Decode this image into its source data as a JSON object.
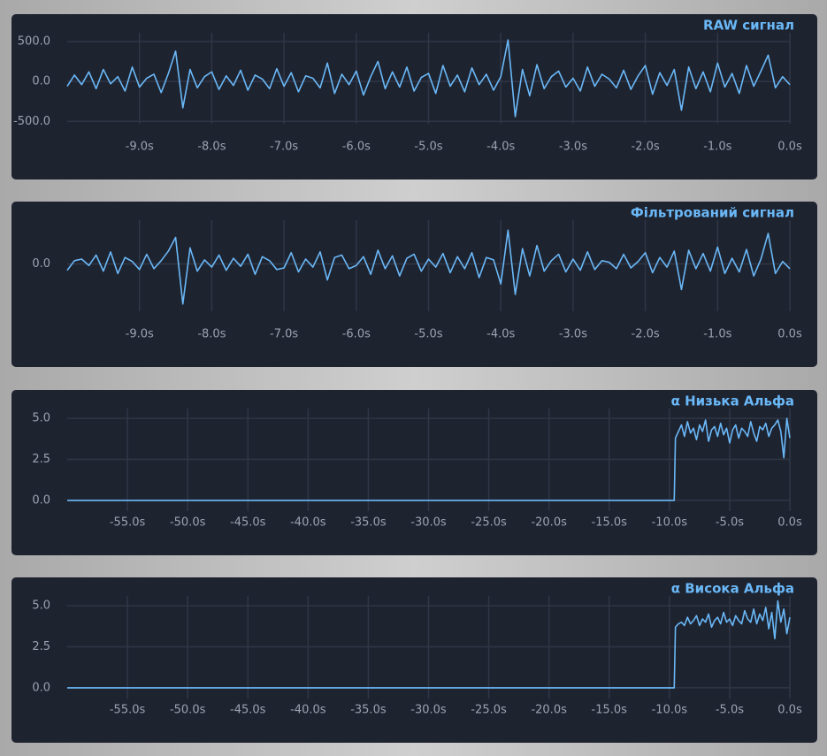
{
  "chart_data": [
    {
      "type": "line",
      "title": "RAW сигнал",
      "color": "#6ab8f7",
      "grid": true,
      "x": [
        -10,
        -9.9,
        -9.8,
        -9.7,
        -9.6,
        -9.5,
        -9.4,
        -9.3,
        -9.2,
        -9.1,
        -9,
        -8.9,
        -8.8,
        -8.7,
        -8.6,
        -8.5,
        -8.4,
        -8.3,
        -8.2,
        -8.1,
        -8,
        -7.9,
        -7.8,
        -7.7,
        -7.6,
        -7.5,
        -7.4,
        -7.3,
        -7.2,
        -7.1,
        -7,
        -6.9,
        -6.8,
        -6.7,
        -6.6,
        -6.5,
        -6.4,
        -6.3,
        -6.2,
        -6.1,
        -6,
        -5.9,
        -5.8,
        -5.7,
        -5.6,
        -5.5,
        -5.4,
        -5.3,
        -5.2,
        -5.1,
        -5,
        -4.9,
        -4.8,
        -4.7,
        -4.6,
        -4.5,
        -4.4,
        -4.3,
        -4.2,
        -4.1,
        -4,
        -3.9,
        -3.8,
        -3.7,
        -3.6,
        -3.5,
        -3.4,
        -3.3,
        -3.2,
        -3.1,
        -3,
        -2.9,
        -2.8,
        -2.7,
        -2.6,
        -2.5,
        -2.4,
        -2.3,
        -2.2,
        -2.1,
        -2,
        -1.9,
        -1.8,
        -1.7,
        -1.6,
        -1.5,
        -1.4,
        -1.3,
        -1.2,
        -1.1,
        -1,
        -0.9,
        -0.8,
        -0.7,
        -0.6,
        -0.5,
        -0.4,
        -0.3,
        -0.2,
        -0.1,
        0
      ],
      "values": [
        -60,
        80,
        -40,
        120,
        -90,
        150,
        -30,
        60,
        -120,
        180,
        -70,
        40,
        90,
        -140,
        100,
        380,
        -330,
        150,
        -80,
        60,
        120,
        -100,
        70,
        -50,
        140,
        -110,
        80,
        30,
        -90,
        160,
        -60,
        110,
        -130,
        70,
        40,
        -80,
        230,
        -150,
        90,
        -40,
        130,
        -170,
        60,
        250,
        -90,
        120,
        -70,
        180,
        -120,
        50,
        100,
        -150,
        200,
        -60,
        80,
        -130,
        170,
        -40,
        90,
        -110,
        60,
        520,
        -440,
        150,
        -180,
        210,
        -90,
        60,
        130,
        -70,
        40,
        -120,
        180,
        -60,
        90,
        30,
        -80,
        140,
        -100,
        70,
        200,
        -160,
        110,
        -50,
        150,
        -360,
        180,
        -90,
        120,
        -130,
        230,
        -70,
        100,
        -150,
        200,
        -60,
        130,
        330,
        -80,
        60,
        -40
      ],
      "xlim": [
        -10,
        0
      ],
      "ylim": [
        -530,
        610
      ],
      "xticks": [
        {
          "value": -9,
          "label": "-9.0s"
        },
        {
          "value": -8,
          "label": "-8.0s"
        },
        {
          "value": -7,
          "label": "-7.0s"
        },
        {
          "value": -6,
          "label": "-6.0s"
        },
        {
          "value": -5,
          "label": "-5.0s"
        },
        {
          "value": -4,
          "label": "-4.0s"
        },
        {
          "value": -3,
          "label": "-3.0s"
        },
        {
          "value": -2,
          "label": "-2.0s"
        },
        {
          "value": -1,
          "label": "-1.0s"
        },
        {
          "value": 0,
          "label": "0.0s"
        }
      ],
      "yticks": [
        {
          "value": -500,
          "label": "-500.0"
        },
        {
          "value": 0,
          "label": "0.0"
        },
        {
          "value": 500,
          "label": "500.0"
        }
      ]
    },
    {
      "type": "line",
      "title": "Фільтрований сигнал",
      "color": "#6ab8f7",
      "grid": true,
      "x": [
        -10,
        -9.9,
        -9.8,
        -9.7,
        -9.6,
        -9.5,
        -9.4,
        -9.3,
        -9.2,
        -9.1,
        -9,
        -8.9,
        -8.8,
        -8.7,
        -8.6,
        -8.5,
        -8.4,
        -8.3,
        -8.2,
        -8.1,
        -8,
        -7.9,
        -7.8,
        -7.7,
        -7.6,
        -7.5,
        -7.4,
        -7.3,
        -7.2,
        -7.1,
        -7,
        -6.9,
        -6.8,
        -6.7,
        -6.6,
        -6.5,
        -6.4,
        -6.3,
        -6.2,
        -6.1,
        -6,
        -5.9,
        -5.8,
        -5.7,
        -5.6,
        -5.5,
        -5.4,
        -5.3,
        -5.2,
        -5.1,
        -5,
        -4.9,
        -4.8,
        -4.7,
        -4.6,
        -4.5,
        -4.4,
        -4.3,
        -4.2,
        -4.1,
        -4,
        -3.9,
        -3.8,
        -3.7,
        -3.6,
        -3.5,
        -3.4,
        -3.3,
        -3.2,
        -3.1,
        -3,
        -2.9,
        -2.8,
        -2.7,
        -2.6,
        -2.5,
        -2.4,
        -2.3,
        -2.2,
        -2.1,
        -2,
        -1.9,
        -1.8,
        -1.7,
        -1.6,
        -1.5,
        -1.4,
        -1.3,
        -1.2,
        -1.1,
        -1,
        -0.9,
        -0.8,
        -0.7,
        -0.6,
        -0.5,
        -0.4,
        -0.3,
        -0.2,
        -0.1,
        0
      ],
      "values": [
        -80,
        40,
        60,
        -20,
        110,
        -90,
        150,
        -120,
        80,
        30,
        -70,
        120,
        -60,
        40,
        160,
        330,
        -500,
        200,
        -90,
        50,
        -40,
        110,
        -80,
        70,
        -30,
        120,
        -130,
        90,
        40,
        -70,
        -50,
        140,
        -100,
        60,
        -40,
        150,
        -200,
        80,
        110,
        -60,
        -20,
        90,
        -130,
        170,
        -60,
        100,
        -150,
        70,
        120,
        -90,
        60,
        -40,
        130,
        -110,
        90,
        -60,
        140,
        -170,
        80,
        50,
        -250,
        420,
        -380,
        190,
        -150,
        230,
        -90,
        40,
        120,
        -100,
        60,
        -80,
        150,
        -70,
        40,
        20,
        -60,
        120,
        -50,
        30,
        140,
        -110,
        80,
        -40,
        160,
        -320,
        170,
        -60,
        130,
        -90,
        210,
        -120,
        70,
        -100,
        180,
        -150,
        60,
        380,
        -120,
        30,
        -60
      ],
      "xlim": [
        -10,
        0
      ],
      "ylim": [
        -590,
        545
      ],
      "xticks": [
        {
          "value": -9,
          "label": "-9.0s"
        },
        {
          "value": -8,
          "label": "-8.0s"
        },
        {
          "value": -7,
          "label": "-7.0s"
        },
        {
          "value": -6,
          "label": "-6.0s"
        },
        {
          "value": -5,
          "label": "-5.0s"
        },
        {
          "value": -4,
          "label": "-4.0s"
        },
        {
          "value": -3,
          "label": "-3.0s"
        },
        {
          "value": -2,
          "label": "-2.0s"
        },
        {
          "value": -1,
          "label": "-1.0s"
        },
        {
          "value": 0,
          "label": "0.0s"
        }
      ],
      "yticks": [
        {
          "value": 0,
          "label": "0.0"
        }
      ]
    },
    {
      "type": "line",
      "title": "α Низька Альфа",
      "color": "#6ab8f7",
      "grid": true,
      "x": [
        -60,
        -9.6,
        -9.5,
        -9.25,
        -9,
        -8.75,
        -8.5,
        -8.25,
        -8,
        -7.75,
        -7.5,
        -7.25,
        -7,
        -6.75,
        -6.5,
        -6.25,
        -6,
        -5.75,
        -5.5,
        -5.25,
        -5,
        -4.75,
        -4.5,
        -4.25,
        -4,
        -3.75,
        -3.5,
        -3.25,
        -3,
        -2.75,
        -2.5,
        -2.25,
        -2,
        -1.75,
        -1.5,
        -1.25,
        -1,
        -0.75,
        -0.5,
        -0.25,
        0
      ],
      "values": [
        0,
        0,
        3.8,
        4.2,
        4.6,
        3.9,
        4.8,
        4.1,
        4.4,
        3.7,
        4.6,
        4.2,
        4.9,
        3.6,
        4.3,
        4.5,
        3.9,
        4.7,
        4.0,
        4.4,
        3.5,
        4.3,
        4.6,
        3.8,
        4.4,
        4.2,
        3.9,
        4.8,
        4.1,
        3.6,
        4.5,
        4.3,
        4.7,
        3.9,
        4.4,
        4.6,
        4.9,
        4.2,
        2.6,
        5.0,
        3.8
      ],
      "xlim": [
        -60,
        0
      ],
      "ylim": [
        -0.65,
        5.6
      ],
      "xticks": [
        {
          "value": -55,
          "label": "-55.0s"
        },
        {
          "value": -50,
          "label": "-50.0s"
        },
        {
          "value": -45,
          "label": "-45.0s"
        },
        {
          "value": -40,
          "label": "-40.0s"
        },
        {
          "value": -35,
          "label": "-35.0s"
        },
        {
          "value": -30,
          "label": "-30.0s"
        },
        {
          "value": -25,
          "label": "-25.0s"
        },
        {
          "value": -20,
          "label": "-20.0s"
        },
        {
          "value": -15,
          "label": "-15.0s"
        },
        {
          "value": -10,
          "label": "-10.0s"
        },
        {
          "value": -5,
          "label": "-5.0s"
        },
        {
          "value": 0,
          "label": "0.0s"
        }
      ],
      "yticks": [
        {
          "value": 0,
          "label": "0.0"
        },
        2.5,
        {
          "value": 5,
          "label": "5.0"
        }
      ]
    },
    {
      "type": "line",
      "title": "α Висока Альфа",
      "color": "#6ab8f7",
      "grid": true,
      "x": [
        -60,
        -9.6,
        -9.5,
        -9.25,
        -9,
        -8.75,
        -8.5,
        -8.25,
        -8,
        -7.75,
        -7.5,
        -7.25,
        -7,
        -6.75,
        -6.5,
        -6.25,
        -6,
        -5.75,
        -5.5,
        -5.25,
        -5,
        -4.75,
        -4.5,
        -4.25,
        -4,
        -3.75,
        -3.5,
        -3.25,
        -3,
        -2.75,
        -2.5,
        -2.25,
        -2,
        -1.75,
        -1.5,
        -1.25,
        -1,
        -0.75,
        -0.5,
        -0.25,
        0
      ],
      "values": [
        0,
        0,
        3.7,
        3.9,
        4.0,
        3.8,
        4.3,
        3.9,
        4.1,
        4.4,
        3.8,
        4.2,
        4.0,
        4.5,
        3.7,
        4.1,
        4.3,
        3.9,
        4.6,
        4.0,
        4.2,
        3.8,
        4.4,
        4.1,
        3.9,
        4.7,
        4.2,
        4.0,
        4.8,
        3.9,
        4.5,
        4.1,
        4.9,
        3.6,
        4.6,
        3.0,
        5.3,
        4.0,
        4.8,
        3.3,
        4.3
      ],
      "xlim": [
        -60,
        0
      ],
      "ylim": [
        -0.65,
        5.6
      ],
      "xticks": [
        {
          "value": -55,
          "label": "-55.0s"
        },
        {
          "value": -50,
          "label": "-50.0s"
        },
        {
          "value": -45,
          "label": "-45.0s"
        },
        {
          "value": -40,
          "label": "-40.0s"
        },
        {
          "value": -35,
          "label": "-35.0s"
        },
        {
          "value": -30,
          "label": "-30.0s"
        },
        {
          "value": -25,
          "label": "-25.0s"
        },
        {
          "value": -20,
          "label": "-20.0s"
        },
        {
          "value": -15,
          "label": "-15.0s"
        },
        {
          "value": -10,
          "label": "-10.0s"
        },
        {
          "value": -5,
          "label": "-5.0s"
        },
        {
          "value": 0,
          "label": "0.0s"
        }
      ],
      "yticks": [
        {
          "value": 0,
          "label": "0.0"
        },
        2.5,
        {
          "value": 5,
          "label": "5.0"
        }
      ]
    }
  ]
}
